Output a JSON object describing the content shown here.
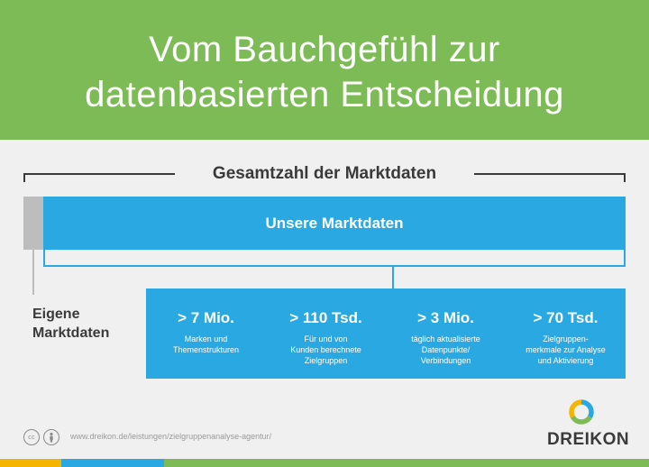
{
  "header": {
    "title_line1": "Vom Bauchgefühl zur",
    "title_line2": "datenbasierten Entscheidung"
  },
  "diagram": {
    "total_label": "Gesamtzahl der Marktdaten",
    "market_bar_label": "Unsere Marktdaten",
    "own_label_line1": "Eigene",
    "own_label_line2": "Marktdaten",
    "stats": [
      {
        "value": "> 7 Mio.",
        "desc": [
          "Marken und",
          "Themenstrukturen"
        ]
      },
      {
        "value": "> 110 Tsd.",
        "desc": [
          "Für und von",
          "Kunden berechnete",
          "Zielgruppen"
        ]
      },
      {
        "value": "> 3 Mio.",
        "desc": [
          "täglich aktualisierte",
          "Datenpunkte/",
          "Verbindungen"
        ]
      },
      {
        "value": "> 70 Tsd.",
        "desc": [
          "Zielgruppen-",
          "merkmale zur Analyse",
          "und Aktivierung"
        ]
      }
    ]
  },
  "footer": {
    "cc_icon": "cc",
    "person_icon": "person-icon",
    "url": "www.dreikon.de/leistungen/zielgruppenanalyse-agentur/",
    "brand": "DREIKON",
    "logo_colors": [
      "#2aa8e2",
      "#7dbb57",
      "#f4b400"
    ]
  },
  "colors": {
    "green": "#7dbb57",
    "blue": "#2aa8e2",
    "grey": "#bdbdbd",
    "yellow": "#f4b400"
  }
}
